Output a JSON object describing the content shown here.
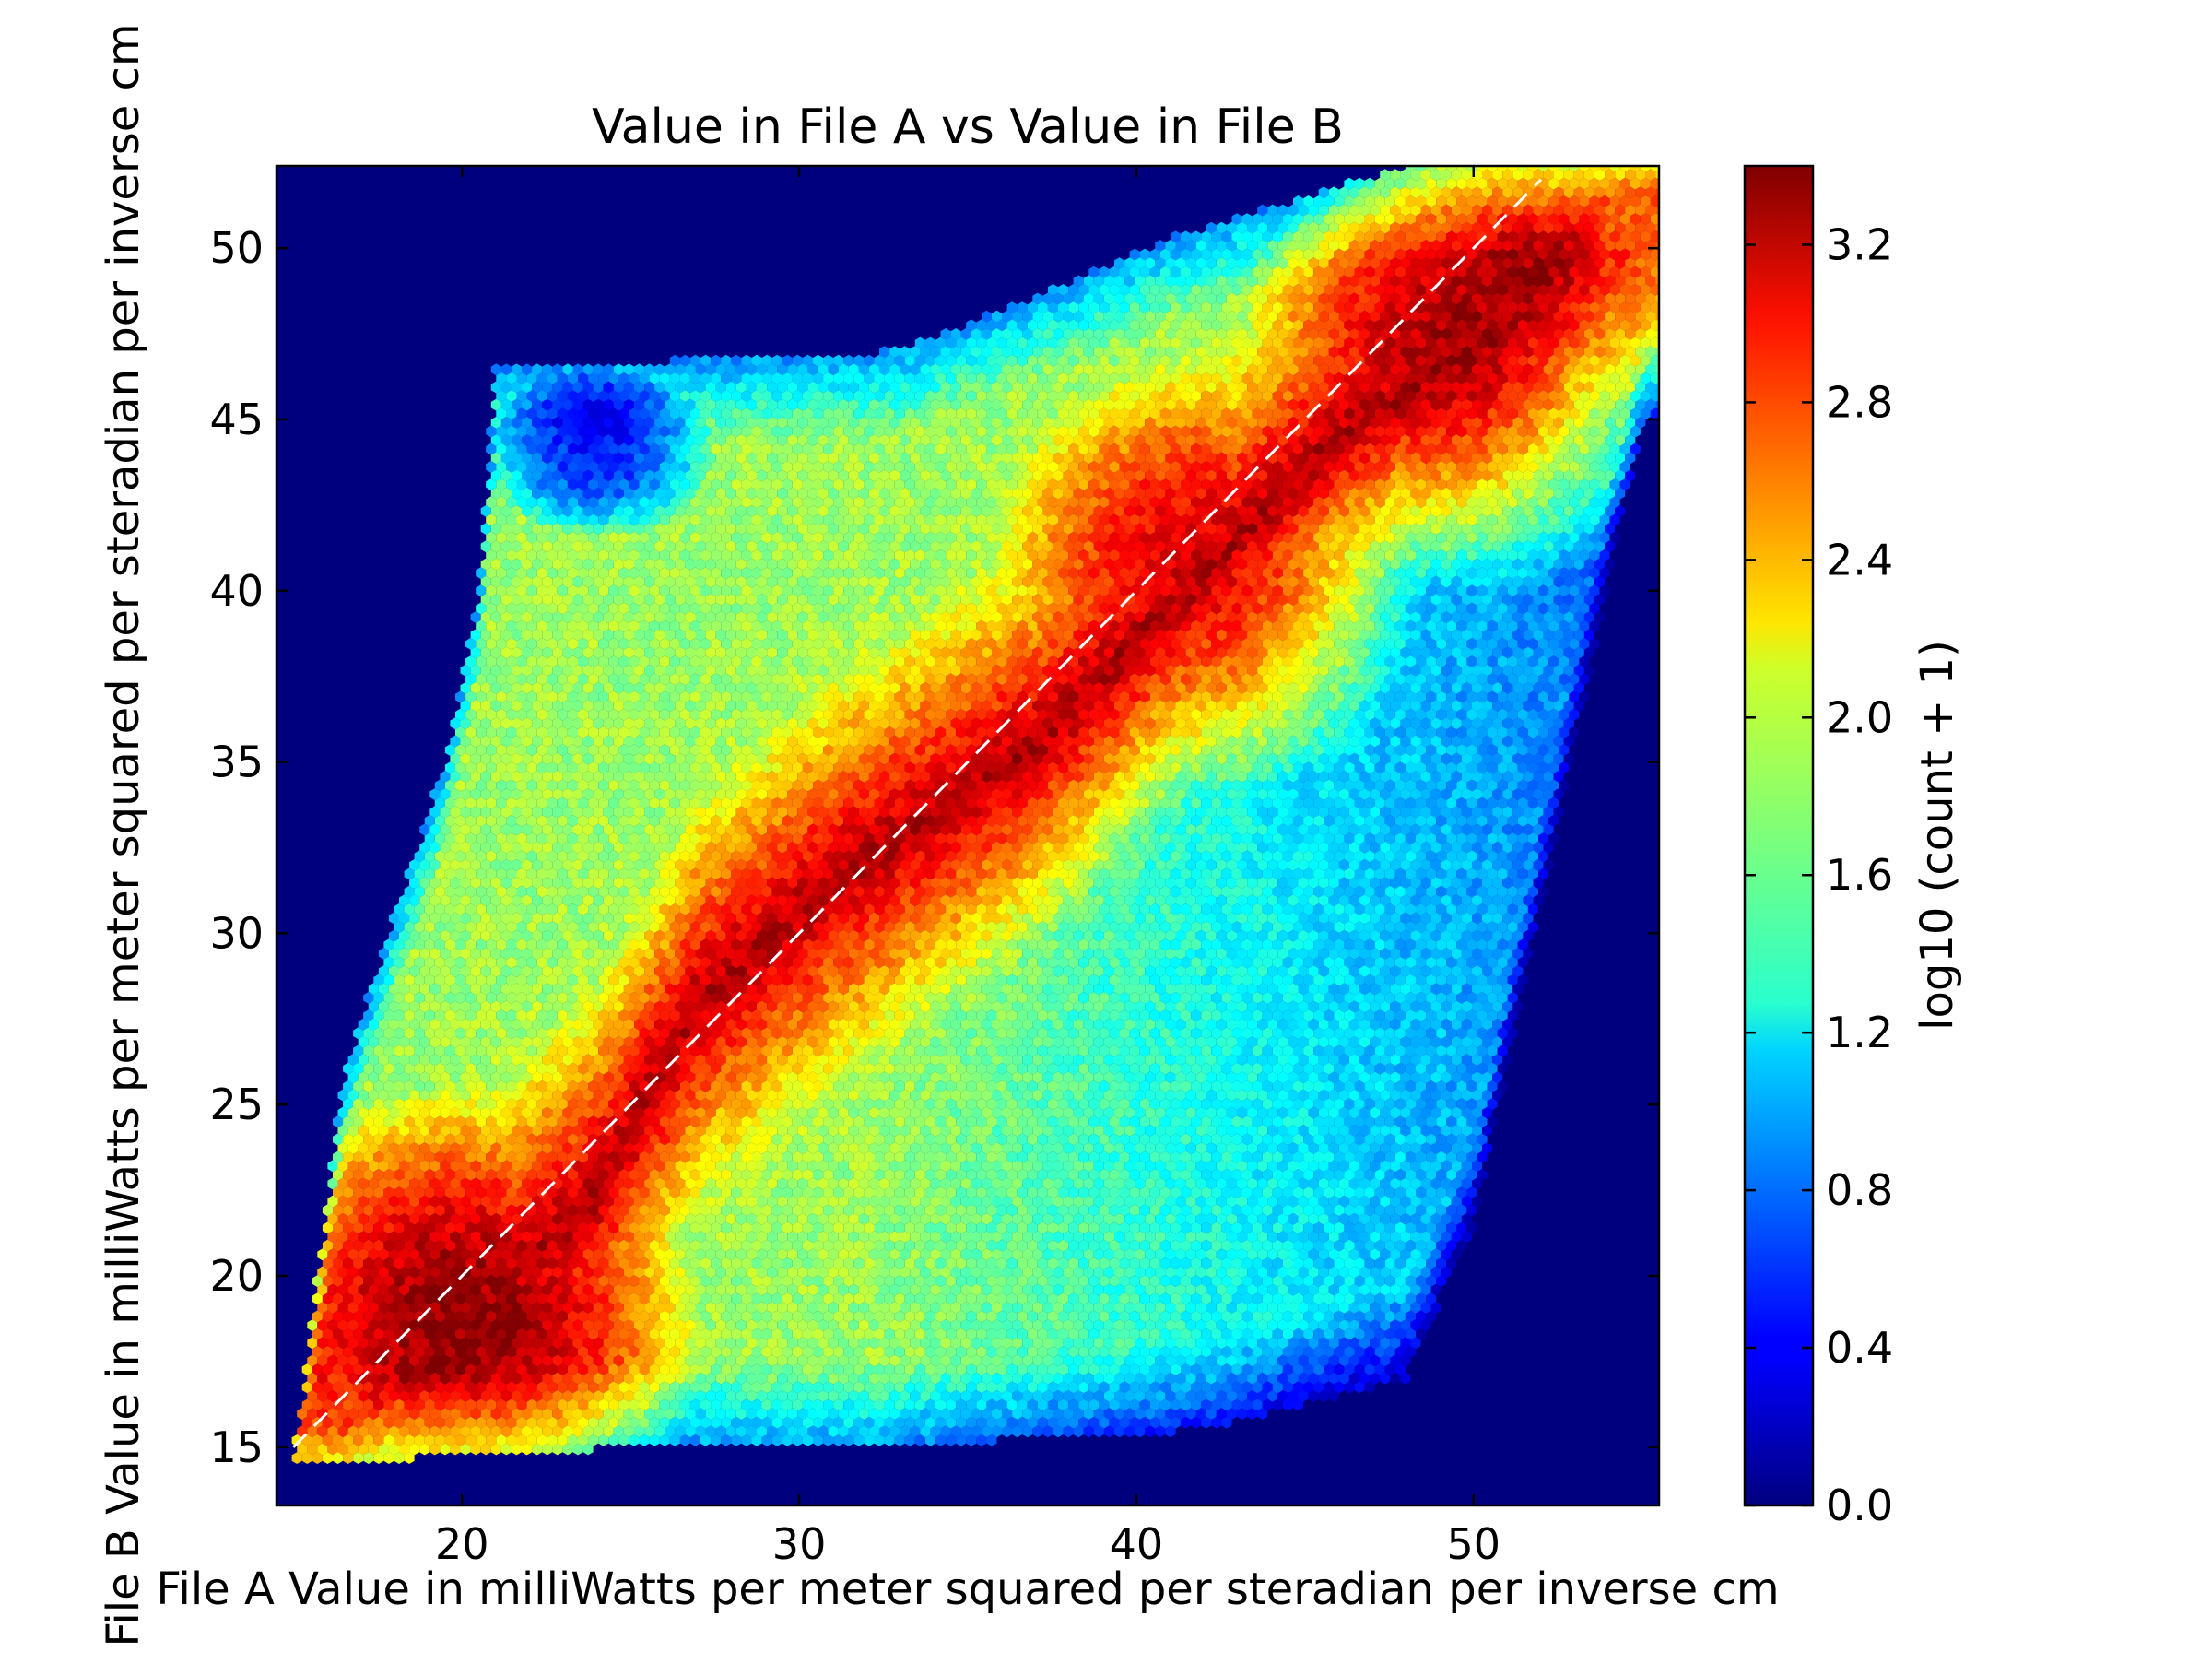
{
  "chart_data": {
    "type": "heatmap",
    "subtype": "hexbin",
    "title": "Value in File A vs Value in File B",
    "xlabel": "File A Value in milliWatts per meter squared per steradian per inverse cm",
    "ylabel": "File B Value in milliWatts per meter squared per steradian per inverse cm",
    "xlim": [
      14.5,
      55.5
    ],
    "ylim": [
      13.3,
      52.4
    ],
    "xticks": [
      20,
      30,
      40,
      50
    ],
    "yticks": [
      15,
      20,
      25,
      30,
      35,
      40,
      45,
      50
    ],
    "xtick_labels": [
      "20",
      "30",
      "40",
      "50"
    ],
    "ytick_labels": [
      "15",
      "20",
      "25",
      "30",
      "35",
      "40",
      "45",
      "50"
    ],
    "colorbar": {
      "label": "log10 (count + 1)",
      "range": [
        0.0,
        3.4
      ],
      "ticks": [
        0.0,
        0.4,
        0.8,
        1.2,
        1.6,
        2.0,
        2.4,
        2.8,
        3.2
      ],
      "tick_labels": [
        "0.0",
        "0.4",
        "0.8",
        "1.2",
        "1.6",
        "2.0",
        "2.4",
        "2.8",
        "3.2"
      ],
      "colormap": "jet"
    },
    "reference_line": {
      "style": "dashed",
      "color": "#ffffff",
      "from": [
        15,
        15
      ],
      "to": [
        52,
        52
      ]
    },
    "grid": false,
    "background_color": "#00007f",
    "density_model": {
      "description": "approximate log10(count+1) values of hexbin cells",
      "data_footprint": {
        "lower_edge": [
          [
            15,
            14.5
          ],
          [
            25,
            15.0
          ],
          [
            32,
            15.0
          ],
          [
            42,
            15.5
          ],
          [
            48,
            17.0
          ],
          [
            50,
            21.5
          ],
          [
            53,
            35.5
          ],
          [
            55,
            45.0
          ]
        ],
        "upper_edge": [
          [
            15,
            14.5
          ],
          [
            16.5,
            26.0
          ],
          [
            19.5,
            35.0
          ],
          [
            20.5,
            40.0
          ],
          [
            21,
            46.5
          ],
          [
            33,
            47.0
          ],
          [
            38,
            49.0
          ],
          [
            41,
            50.3
          ],
          [
            48,
            52.4
          ],
          [
            55,
            52.4
          ]
        ]
      },
      "diagonal_ridge": {
        "points": [
          [
            16.5,
            15.5
          ],
          [
            20,
            18.5
          ],
          [
            24,
            22.5
          ],
          [
            27,
            28.0
          ],
          [
            31,
            31.5
          ],
          [
            37,
            35.5
          ],
          [
            42,
            40.5
          ],
          [
            46,
            44.5
          ],
          [
            50,
            47.0
          ],
          [
            52,
            49.0
          ],
          [
            54,
            51.5
          ]
        ],
        "peak_value": 3.4
      },
      "dense_blobs": [
        {
          "x": 20,
          "y": 18.5,
          "value": 3.35
        },
        {
          "x": 42,
          "y": 40.5,
          "value": 3.1
        },
        {
          "x": 50,
          "y": 47.0,
          "value": 3.3
        },
        {
          "x": 52,
          "y": 49.0,
          "value": 3.3
        }
      ],
      "sparse_region": {
        "x": 24,
        "y": 44.0,
        "value": 0.5
      },
      "background_level": 1.8
    }
  }
}
